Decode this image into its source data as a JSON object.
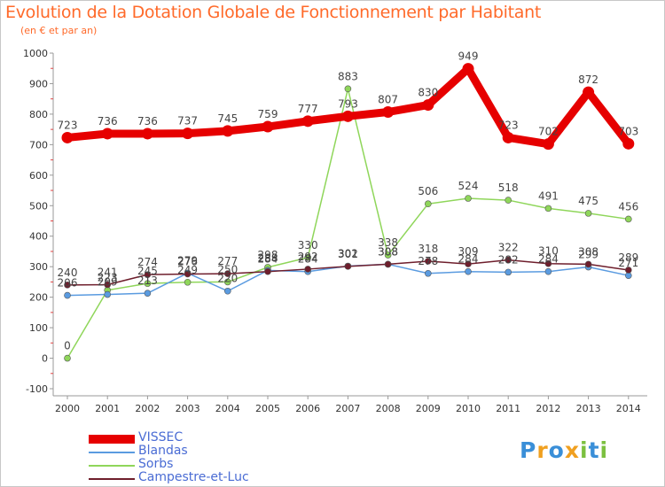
{
  "title": "Evolution de la Dotation Globale de Fonctionnement par Habitant",
  "subtitle": "(en € et par an)",
  "logo": "Proxiti",
  "chart_data": {
    "type": "line",
    "title": "Evolution de la Dotation Globale de Fonctionnement par Habitant",
    "ylabel": "(en € et par an)",
    "xlabel": "",
    "x": [
      "2000",
      "2001",
      "2002",
      "2003",
      "2004",
      "2005",
      "2006",
      "2007",
      "2008",
      "2009",
      "2010",
      "2011",
      "2012",
      "2013",
      "2014"
    ],
    "ylim": [
      -100,
      1000
    ],
    "yticks": [
      -100,
      0,
      100,
      200,
      300,
      400,
      500,
      600,
      700,
      800,
      900,
      1000
    ],
    "grid": false,
    "legend_position": "bottom-left",
    "series": [
      {
        "name": "VISSEC",
        "color": "#e60000",
        "values": [
          723,
          736,
          736,
          737,
          745,
          759,
          777,
          793,
          807,
          830,
          949,
          723,
          702,
          872,
          703
        ]
      },
      {
        "name": "Blandas",
        "color": "#5a9be0",
        "values": [
          206,
          209,
          213,
          279,
          220,
          288,
          284,
          302,
          308,
          278,
          284,
          282,
          284,
          299,
          271
        ]
      },
      {
        "name": "Sorbs",
        "color": "#8fd65a",
        "values": [
          0,
          223,
          245,
          249,
          250,
          298,
          330,
          883,
          338,
          506,
          524,
          518,
          491,
          475,
          456
        ]
      },
      {
        "name": "Campestre-et-Luc",
        "color": "#6e1e2c",
        "values": [
          240,
          241,
          274,
          276,
          277,
          284,
          292,
          301,
          308,
          318,
          309,
          322,
          310,
          308,
          289
        ]
      }
    ]
  }
}
